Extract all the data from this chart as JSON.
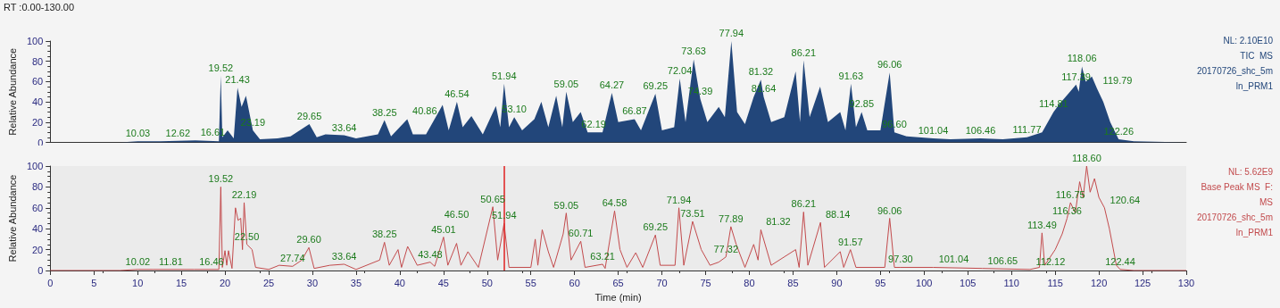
{
  "chart_data": [
    {
      "type": "area",
      "title": "RT :0.00-130.00",
      "ylabel": "Relative Abundance",
      "xlim": [
        0,
        130
      ],
      "ylim": [
        0,
        100
      ],
      "yticks": [
        0,
        20,
        40,
        60,
        80,
        100
      ],
      "tick_labels": "y",
      "grid": false,
      "marker": "none",
      "x": [
        0,
        8,
        10.03,
        12.62,
        16.61,
        19.3,
        19.52,
        19.7,
        20.3,
        21.0,
        21.43,
        21.9,
        22.4,
        23.19,
        24,
        26,
        27.5,
        29.65,
        30.5,
        31.5,
        33.64,
        35,
        37.5,
        38.25,
        39,
        40.86,
        41.5,
        43,
        44.9,
        45.6,
        46.54,
        47.2,
        48.2,
        49.5,
        51.0,
        51.5,
        51.94,
        52.5,
        53.1,
        54,
        55.4,
        56.2,
        57,
        57.9,
        58.6,
        59.05,
        59.8,
        60.7,
        61.5,
        62.19,
        63.2,
        64.27,
        65,
        66.87,
        67.6,
        69.25,
        70,
        71.4,
        72.04,
        72.7,
        73.63,
        74.39,
        75.2,
        76.5,
        77.2,
        77.94,
        78.6,
        79.5,
        80.5,
        81.32,
        81.64,
        82.5,
        84,
        85.3,
        85.8,
        86.21,
        86.9,
        88.1,
        89,
        90.4,
        91.0,
        91.63,
        92.2,
        92.85,
        93.5,
        95,
        96.06,
        96.6,
        98,
        101.04,
        103,
        106.46,
        109,
        111.77,
        113.5,
        114.81,
        115.5,
        116.5,
        117.39,
        117.7,
        118.06,
        118.5,
        119.2,
        119.79,
        120.5,
        121.3,
        122.26,
        124,
        130
      ],
      "series": [
        {
          "color": "#22467a",
          "values": [
            0,
            0,
            1,
            1,
            2,
            1,
            66,
            5,
            12,
            4,
            54,
            35,
            46,
            12,
            3,
            4,
            6,
            18,
            5,
            8,
            7,
            4,
            8,
            22,
            6,
            23,
            8,
            8,
            37,
            12,
            40,
            15,
            26,
            8,
            36,
            15,
            58,
            15,
            25,
            12,
            23,
            40,
            15,
            46,
            15,
            50,
            20,
            30,
            10,
            10,
            10,
            49,
            20,
            23,
            12,
            48,
            12,
            15,
            63,
            20,
            82,
            43,
            20,
            35,
            25,
            100,
            30,
            18,
            45,
            62,
            45,
            20,
            25,
            70,
            20,
            81,
            25,
            55,
            20,
            30,
            12,
            58,
            15,
            30,
            12,
            12,
            69,
            10,
            6,
            4,
            3,
            4,
            3,
            5,
            10,
            30,
            38,
            48,
            57,
            50,
            75,
            60,
            65,
            53,
            40,
            20,
            3,
            1,
            0
          ]
        }
      ],
      "annotations": [
        {
          "text": "10.03",
          "x": 10.03,
          "y": 1
        },
        {
          "text": "12.62",
          "x": 12.62,
          "y": 1
        },
        {
          "text": "16.61",
          "x": 16.61,
          "y": 2
        },
        {
          "text": "19.52",
          "x": 19.52,
          "y": 66
        },
        {
          "text": "21.43",
          "x": 21.43,
          "y": 54
        },
        {
          "text": "23.19",
          "x": 23.19,
          "y": 12
        },
        {
          "text": "29.65",
          "x": 29.65,
          "y": 18
        },
        {
          "text": "33.64",
          "x": 33.64,
          "y": 7
        },
        {
          "text": "38.25",
          "x": 38.25,
          "y": 22
        },
        {
          "text": "40.86",
          "x": 40.86,
          "y": 23
        },
        {
          "text": "46.54",
          "x": 46.54,
          "y": 40
        },
        {
          "text": "51.94",
          "x": 51.94,
          "y": 58
        },
        {
          "text": "53.10",
          "x": 53.1,
          "y": 25
        },
        {
          "text": "59.05",
          "x": 59.05,
          "y": 50
        },
        {
          "text": "62.19",
          "x": 62.19,
          "y": 10
        },
        {
          "text": "64.27",
          "x": 64.27,
          "y": 49
        },
        {
          "text": "66.87",
          "x": 66.87,
          "y": 23
        },
        {
          "text": "69.25",
          "x": 69.25,
          "y": 48
        },
        {
          "text": "72.04",
          "x": 72.04,
          "y": 63
        },
        {
          "text": "73.63",
          "x": 73.63,
          "y": 82
        },
        {
          "text": "74.39",
          "x": 74.39,
          "y": 43
        },
        {
          "text": "77.94",
          "x": 77.94,
          "y": 100
        },
        {
          "text": "81.32",
          "x": 81.32,
          "y": 62
        },
        {
          "text": "81.64",
          "x": 81.64,
          "y": 45
        },
        {
          "text": "86.21",
          "x": 86.21,
          "y": 81
        },
        {
          "text": "91.63",
          "x": 91.63,
          "y": 58
        },
        {
          "text": "92.85",
          "x": 92.85,
          "y": 30
        },
        {
          "text": "96.06",
          "x": 96.06,
          "y": 69
        },
        {
          "text": "96.60",
          "x": 96.6,
          "y": 10
        },
        {
          "text": "101.04",
          "x": 101.04,
          "y": 4
        },
        {
          "text": "106.46",
          "x": 106.46,
          "y": 4
        },
        {
          "text": "111.77",
          "x": 111.77,
          "y": 5
        },
        {
          "text": "114.81",
          "x": 114.81,
          "y": 30
        },
        {
          "text": "117.39",
          "x": 117.39,
          "y": 57
        },
        {
          "text": "118.06",
          "x": 118.06,
          "y": 75
        },
        {
          "text": "119.79",
          "x": 119.79,
          "y": 53
        },
        {
          "text": "122.26",
          "x": 122.26,
          "y": 3
        },
        "NL: 2.10E10",
        "TIC  MS",
        "20170726_shc_5m",
        "ln_PRM1"
      ]
    },
    {
      "type": "line",
      "xlabel": "Time (min)",
      "ylabel": "Relative Abundance",
      "xlim": [
        0,
        130
      ],
      "xticks": [
        0,
        5,
        10,
        15,
        20,
        25,
        30,
        35,
        40,
        45,
        50,
        55,
        60,
        65,
        70,
        75,
        80,
        85,
        90,
        95,
        100,
        105,
        110,
        115,
        120,
        125,
        130
      ],
      "ylim": [
        0,
        100
      ],
      "yticks": [
        0,
        20,
        40,
        60,
        80,
        100
      ],
      "grid": false,
      "marker": "none",
      "line_style": "solid",
      "x": [
        0,
        8,
        10.02,
        11.81,
        16.46,
        19.3,
        19.52,
        19.7,
        20,
        20.2,
        20.4,
        20.8,
        21.2,
        21.5,
        21.8,
        22.0,
        22.19,
        22.5,
        23.1,
        23.5,
        25,
        26.2,
        27.74,
        28.8,
        29.6,
        30.2,
        32,
        33.64,
        35,
        37.7,
        38.25,
        38.8,
        39.8,
        40.2,
        40.9,
        42,
        43.48,
        44,
        45.01,
        45.5,
        46.5,
        47,
        47.8,
        49,
        50.65,
        51.2,
        51.94,
        52.5,
        55,
        55.5,
        55.8,
        56.3,
        57,
        57.6,
        58.7,
        59.05,
        59.6,
        60.71,
        61.2,
        63.21,
        63.5,
        64.58,
        65.2,
        66,
        67,
        67.8,
        69.25,
        69.8,
        71.5,
        71.94,
        72.5,
        73.51,
        74.5,
        75.5,
        76.5,
        77.32,
        77.89,
        78.5,
        79.5,
        80.5,
        81.0,
        81.32,
        82.5,
        85.3,
        85.7,
        86.21,
        86.7,
        88.14,
        88.6,
        90.4,
        90.8,
        91.57,
        92.2,
        95.5,
        96.06,
        96.6,
        97.3,
        101.04,
        106.65,
        112.12,
        113.2,
        113.49,
        113.8,
        115,
        115.8,
        116.36,
        116.75,
        117.3,
        117.8,
        118.2,
        118.6,
        119.0,
        119.5,
        120.0,
        120.64,
        121.2,
        122,
        122.44,
        124,
        130
      ],
      "series": [
        {
          "color": "#c24a4c",
          "values": [
            0,
            0,
            1,
            1,
            1,
            1,
            80,
            3,
            19,
            5,
            19,
            2,
            60,
            48,
            50,
            20,
            65,
            25,
            20,
            3,
            1,
            5,
            4,
            10,
            22,
            2,
            5,
            6,
            1,
            10,
            27,
            5,
            20,
            3,
            23,
            5,
            8,
            4,
            32,
            5,
            26,
            5,
            18,
            3,
            61,
            10,
            45,
            3,
            3,
            30,
            5,
            39,
            18,
            3,
            35,
            55,
            10,
            28,
            3,
            6,
            2,
            57,
            20,
            3,
            17,
            3,
            34,
            5,
            5,
            60,
            5,
            47,
            20,
            5,
            8,
            13,
            42,
            25,
            3,
            25,
            10,
            39,
            5,
            20,
            3,
            56,
            5,
            46,
            3,
            18,
            3,
            20,
            3,
            3,
            50,
            3,
            3,
            3,
            2,
            1,
            3,
            36,
            5,
            20,
            35,
            50,
            65,
            55,
            85,
            70,
            100,
            75,
            88,
            70,
            60,
            40,
            5,
            1,
            0,
            0
          ]
        }
      ],
      "ref_lines": [
        {
          "axis": "x",
          "value": 51.94,
          "color": "#e02020"
        }
      ],
      "annotations": [
        {
          "text": "10.02",
          "x": 10.02,
          "y": 1
        },
        {
          "text": "11.81",
          "x": 11.81,
          "y": 1
        },
        {
          "text": "16.46",
          "x": 16.46,
          "y": 1
        },
        {
          "text": "19.52",
          "x": 19.52,
          "y": 80
        },
        {
          "text": "22.19",
          "x": 22.19,
          "y": 65
        },
        {
          "text": "22.50",
          "x": 22.5,
          "y": 25
        },
        {
          "text": "27.74",
          "x": 27.74,
          "y": 4
        },
        {
          "text": "29.60",
          "x": 29.6,
          "y": 22
        },
        {
          "text": "33.64",
          "x": 33.64,
          "y": 6
        },
        {
          "text": "38.25",
          "x": 38.25,
          "y": 27
        },
        {
          "text": "43.48",
          "x": 43.48,
          "y": 8
        },
        {
          "text": "45.01",
          "x": 45.01,
          "y": 32
        },
        {
          "text": "46.50",
          "x": 46.5,
          "y": 26
        },
        {
          "text": "50.65",
          "x": 50.65,
          "y": 61
        },
        {
          "text": "51.94",
          "x": 51.94,
          "y": 45
        },
        {
          "text": "59.05",
          "x": 59.05,
          "y": 55
        },
        {
          "text": "60.71",
          "x": 60.71,
          "y": 28
        },
        {
          "text": "63.21",
          "x": 63.21,
          "y": 6
        },
        {
          "text": "64.58",
          "x": 64.58,
          "y": 57
        },
        {
          "text": "69.25",
          "x": 69.25,
          "y": 34
        },
        {
          "text": "71.94",
          "x": 71.94,
          "y": 60
        },
        {
          "text": "73.51",
          "x": 73.51,
          "y": 47
        },
        {
          "text": "77.32",
          "x": 77.32,
          "y": 13
        },
        {
          "text": "77.89",
          "x": 77.89,
          "y": 42
        },
        {
          "text": "81.32",
          "x": 81.32,
          "y": 39
        },
        {
          "text": "86.21",
          "x": 86.21,
          "y": 56
        },
        {
          "text": "88.14",
          "x": 88.14,
          "y": 46
        },
        {
          "text": "91.57",
          "x": 91.57,
          "y": 20
        },
        {
          "text": "96.06",
          "x": 96.06,
          "y": 50
        },
        {
          "text": "97.30",
          "x": 97.3,
          "y": 3
        },
        {
          "text": "101.04",
          "x": 101.04,
          "y": 3
        },
        {
          "text": "106.65",
          "x": 106.65,
          "y": 2
        },
        {
          "text": "112.12",
          "x": 112.12,
          "y": 1
        },
        {
          "text": "113.49",
          "x": 113.49,
          "y": 36
        },
        {
          "text": "116.36",
          "x": 116.36,
          "y": 50
        },
        {
          "text": "116.75",
          "x": 116.75,
          "y": 65
        },
        {
          "text": "118.60",
          "x": 118.6,
          "y": 100
        },
        {
          "text": "120.64",
          "x": 120.64,
          "y": 60
        },
        {
          "text": "122.44",
          "x": 122.44,
          "y": 1
        },
        "NL: 5.62E9",
        "Base Peak MS  F:",
        "MS",
        "20170726_shc_5m",
        "ln_PRM1"
      ]
    }
  ]
}
